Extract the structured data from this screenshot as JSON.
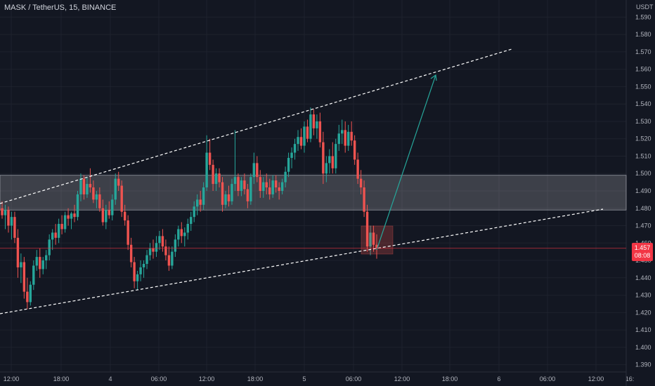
{
  "header": {
    "symbol": "MASK / TetherUS, 15, BINANCE"
  },
  "price_axis": {
    "unit": "USDT",
    "current_price": "1.457",
    "countdown": "08:08"
  },
  "colors": {
    "background": "#131722",
    "grid": "#1e222d",
    "up": "#26a69a",
    "down": "#ef5350",
    "zone": "#ffffff",
    "trendline": "#ffffff",
    "arrow": "#26a69a",
    "axis_text": "#b2b5be",
    "price_line": "#f23645"
  },
  "chart_data": {
    "type": "candlestick",
    "ylim": [
      1.385,
      1.595
    ],
    "yticks": [
      "1.390",
      "1.400",
      "1.410",
      "1.420",
      "1.430",
      "1.440",
      "1.450",
      "1.460",
      "1.470",
      "1.480",
      "1.490",
      "1.500",
      "1.510",
      "1.520",
      "1.530",
      "1.540",
      "1.550",
      "1.560",
      "1.570",
      "1.580",
      "1.590"
    ],
    "xticks": [
      "12:00",
      "18:00",
      "4",
      "06:00",
      "12:00",
      "18:00",
      "5",
      "06:00",
      "12:00",
      "18:00",
      "6",
      "06:00",
      "12:00",
      "16:"
    ],
    "candles": [
      [
        1.48,
        1.484,
        1.474,
        1.476
      ],
      [
        1.476,
        1.482,
        1.468,
        1.479
      ],
      [
        1.479,
        1.481,
        1.466,
        1.47
      ],
      [
        1.47,
        1.478,
        1.462,
        1.475
      ],
      [
        1.475,
        1.478,
        1.46,
        1.463
      ],
      [
        1.463,
        1.468,
        1.44,
        1.446
      ],
      [
        1.446,
        1.454,
        1.437,
        1.449
      ],
      [
        1.449,
        1.452,
        1.428,
        1.432
      ],
      [
        1.432,
        1.44,
        1.422,
        1.426
      ],
      [
        1.426,
        1.438,
        1.424,
        1.436
      ],
      [
        1.436,
        1.45,
        1.433,
        1.447
      ],
      [
        1.447,
        1.456,
        1.444,
        1.452
      ],
      [
        1.452,
        1.457,
        1.44,
        1.445
      ],
      [
        1.445,
        1.452,
        1.442,
        1.45
      ],
      [
        1.45,
        1.456,
        1.445,
        1.453
      ],
      [
        1.453,
        1.465,
        1.45,
        1.462
      ],
      [
        1.462,
        1.468,
        1.456,
        1.466
      ],
      [
        1.466,
        1.471,
        1.459,
        1.463
      ],
      [
        1.463,
        1.474,
        1.46,
        1.471
      ],
      [
        1.471,
        1.476,
        1.465,
        1.468
      ],
      [
        1.468,
        1.478,
        1.466,
        1.476
      ],
      [
        1.476,
        1.48,
        1.47,
        1.474
      ],
      [
        1.474,
        1.478,
        1.468,
        1.477
      ],
      [
        1.477,
        1.482,
        1.472,
        1.475
      ],
      [
        1.475,
        1.49,
        1.473,
        1.488
      ],
      [
        1.488,
        1.5,
        1.484,
        1.497
      ],
      [
        1.497,
        1.499,
        1.485,
        1.488
      ],
      [
        1.488,
        1.498,
        1.486,
        1.494
      ],
      [
        1.494,
        1.503,
        1.489,
        1.492
      ],
      [
        1.492,
        1.496,
        1.483,
        1.485
      ],
      [
        1.485,
        1.49,
        1.48,
        1.488
      ],
      [
        1.488,
        1.492,
        1.478,
        1.48
      ],
      [
        1.48,
        1.485,
        1.47,
        1.472
      ],
      [
        1.472,
        1.482,
        1.468,
        1.479
      ],
      [
        1.479,
        1.484,
        1.474,
        1.476
      ],
      [
        1.476,
        1.488,
        1.473,
        1.485
      ],
      [
        1.485,
        1.5,
        1.482,
        1.497
      ],
      [
        1.497,
        1.501,
        1.49,
        1.493
      ],
      [
        1.493,
        1.496,
        1.475,
        1.478
      ],
      [
        1.478,
        1.482,
        1.47,
        1.473
      ],
      [
        1.473,
        1.476,
        1.456,
        1.459
      ],
      [
        1.459,
        1.463,
        1.446,
        1.449
      ],
      [
        1.449,
        1.452,
        1.434,
        1.438
      ],
      [
        1.438,
        1.444,
        1.433,
        1.442
      ],
      [
        1.442,
        1.45,
        1.438,
        1.446
      ],
      [
        1.446,
        1.45,
        1.44,
        1.448
      ],
      [
        1.448,
        1.456,
        1.445,
        1.453
      ],
      [
        1.453,
        1.46,
        1.45,
        1.457
      ],
      [
        1.457,
        1.462,
        1.451,
        1.455
      ],
      [
        1.455,
        1.464,
        1.452,
        1.46
      ],
      [
        1.46,
        1.467,
        1.456,
        1.464
      ],
      [
        1.464,
        1.468,
        1.455,
        1.458
      ],
      [
        1.458,
        1.462,
        1.45,
        1.453
      ],
      [
        1.453,
        1.458,
        1.444,
        1.447
      ],
      [
        1.447,
        1.458,
        1.445,
        1.455
      ],
      [
        1.455,
        1.465,
        1.452,
        1.462
      ],
      [
        1.462,
        1.47,
        1.458,
        1.468
      ],
      [
        1.468,
        1.472,
        1.46,
        1.464
      ],
      [
        1.464,
        1.469,
        1.458,
        1.466
      ],
      [
        1.466,
        1.474,
        1.462,
        1.471
      ],
      [
        1.471,
        1.478,
        1.467,
        1.475
      ],
      [
        1.475,
        1.484,
        1.472,
        1.481
      ],
      [
        1.481,
        1.488,
        1.476,
        1.485
      ],
      [
        1.485,
        1.49,
        1.478,
        1.482
      ],
      [
        1.482,
        1.495,
        1.479,
        1.492
      ],
      [
        1.492,
        1.522,
        1.49,
        1.512
      ],
      [
        1.512,
        1.52,
        1.502,
        1.505
      ],
      [
        1.505,
        1.508,
        1.49,
        1.494
      ],
      [
        1.494,
        1.503,
        1.49,
        1.5
      ],
      [
        1.5,
        1.503,
        1.492,
        1.495
      ],
      [
        1.495,
        1.498,
        1.478,
        1.482
      ],
      [
        1.482,
        1.49,
        1.48,
        1.488
      ],
      [
        1.488,
        1.493,
        1.481,
        1.484
      ],
      [
        1.484,
        1.497,
        1.482,
        1.494
      ],
      [
        1.494,
        1.525,
        1.49,
        1.498
      ],
      [
        1.498,
        1.5,
        1.487,
        1.49
      ],
      [
        1.49,
        1.498,
        1.487,
        1.496
      ],
      [
        1.496,
        1.5,
        1.488,
        1.491
      ],
      [
        1.491,
        1.494,
        1.48,
        1.484
      ],
      [
        1.484,
        1.5,
        1.482,
        1.498
      ],
      [
        1.498,
        1.512,
        1.494,
        1.506
      ],
      [
        1.506,
        1.51,
        1.495,
        1.498
      ],
      [
        1.498,
        1.502,
        1.486,
        1.49
      ],
      [
        1.49,
        1.498,
        1.486,
        1.495
      ],
      [
        1.495,
        1.5,
        1.488,
        1.492
      ],
      [
        1.492,
        1.497,
        1.485,
        1.488
      ],
      [
        1.488,
        1.499,
        1.486,
        1.496
      ],
      [
        1.496,
        1.499,
        1.489,
        1.492
      ],
      [
        1.492,
        1.495,
        1.485,
        1.49
      ],
      [
        1.49,
        1.497,
        1.488,
        1.495
      ],
      [
        1.495,
        1.504,
        1.492,
        1.501
      ],
      [
        1.501,
        1.512,
        1.498,
        1.509
      ],
      [
        1.509,
        1.515,
        1.503,
        1.512
      ],
      [
        1.512,
        1.52,
        1.508,
        1.517
      ],
      [
        1.517,
        1.525,
        1.513,
        1.521
      ],
      [
        1.521,
        1.526,
        1.514,
        1.516
      ],
      [
        1.516,
        1.53,
        1.512,
        1.527
      ],
      [
        1.527,
        1.531,
        1.518,
        1.52
      ],
      [
        1.52,
        1.538,
        1.518,
        1.534
      ],
      [
        1.534,
        1.537,
        1.522,
        1.526
      ],
      [
        1.526,
        1.534,
        1.52,
        1.53
      ],
      [
        1.53,
        1.535,
        1.515,
        1.518
      ],
      [
        1.518,
        1.524,
        1.494,
        1.5
      ],
      [
        1.5,
        1.51,
        1.495,
        1.506
      ],
      [
        1.506,
        1.514,
        1.5,
        1.51
      ],
      [
        1.51,
        1.518,
        1.5,
        1.503
      ],
      [
        1.503,
        1.52,
        1.5,
        1.517
      ],
      [
        1.517,
        1.528,
        1.513,
        1.523
      ],
      [
        1.523,
        1.531,
        1.517,
        1.525
      ],
      [
        1.525,
        1.53,
        1.512,
        1.516
      ],
      [
        1.516,
        1.528,
        1.513,
        1.524
      ],
      [
        1.524,
        1.53,
        1.516,
        1.519
      ],
      [
        1.519,
        1.522,
        1.505,
        1.508
      ],
      [
        1.508,
        1.512,
        1.494,
        1.497
      ],
      [
        1.497,
        1.502,
        1.488,
        1.492
      ],
      [
        1.492,
        1.496,
        1.475,
        1.478
      ],
      [
        1.478,
        1.482,
        1.455,
        1.458
      ],
      [
        1.458,
        1.47,
        1.453,
        1.466
      ],
      [
        1.466,
        1.47,
        1.455,
        1.459
      ],
      [
        1.459,
        1.465,
        1.451,
        1.457
      ]
    ],
    "resistance_zone": [
      1.479,
      1.499
    ],
    "current_price_value": 1.457
  }
}
